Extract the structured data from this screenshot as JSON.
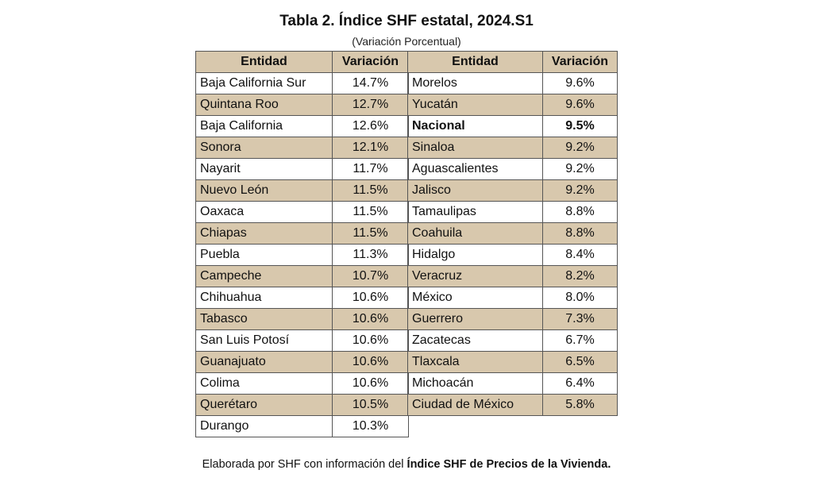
{
  "title": "Tabla 2. Índice SHF estatal, 2024.S1",
  "subtitle": "(Variación Porcentual)",
  "headers": {
    "entidad": "Entidad",
    "variacion": "Variación"
  },
  "left_rows": [
    {
      "entidad": "Baja California Sur",
      "variacion": "14.7%"
    },
    {
      "entidad": "Quintana Roo",
      "variacion": "12.7%"
    },
    {
      "entidad": "Baja California",
      "variacion": "12.6%"
    },
    {
      "entidad": "Sonora",
      "variacion": "12.1%"
    },
    {
      "entidad": "Nayarit",
      "variacion": "11.7%"
    },
    {
      "entidad": "Nuevo León",
      "variacion": "11.5%"
    },
    {
      "entidad": "Oaxaca",
      "variacion": "11.5%"
    },
    {
      "entidad": "Chiapas",
      "variacion": "11.5%"
    },
    {
      "entidad": "Puebla",
      "variacion": "11.3%"
    },
    {
      "entidad": "Campeche",
      "variacion": "10.7%"
    },
    {
      "entidad": "Chihuahua",
      "variacion": "10.6%"
    },
    {
      "entidad": "Tabasco",
      "variacion": "10.6%"
    },
    {
      "entidad": "San Luis Potosí",
      "variacion": "10.6%"
    },
    {
      "entidad": "Guanajuato",
      "variacion": "10.6%"
    },
    {
      "entidad": "Colima",
      "variacion": "10.6%"
    },
    {
      "entidad": "Querétaro",
      "variacion": "10.5%"
    },
    {
      "entidad": "Durango",
      "variacion": "10.3%"
    }
  ],
  "right_rows": [
    {
      "entidad": "Morelos",
      "variacion": "9.6%"
    },
    {
      "entidad": "Yucatán",
      "variacion": "9.6%"
    },
    {
      "entidad": "Nacional",
      "variacion": "9.5%"
    },
    {
      "entidad": "Sinaloa",
      "variacion": "9.2%"
    },
    {
      "entidad": "Aguascalientes",
      "variacion": "9.2%"
    },
    {
      "entidad": "Jalisco",
      "variacion": "9.2%"
    },
    {
      "entidad": "Tamaulipas",
      "variacion": "8.8%"
    },
    {
      "entidad": "Coahuila",
      "variacion": "8.8%"
    },
    {
      "entidad": "Hidalgo",
      "variacion": "8.4%"
    },
    {
      "entidad": "Veracruz",
      "variacion": "8.2%"
    },
    {
      "entidad": "México",
      "variacion": "8.0%"
    },
    {
      "entidad": "Guerrero",
      "variacion": "7.3%"
    },
    {
      "entidad": "Zacatecas",
      "variacion": "6.7%"
    },
    {
      "entidad": "Tlaxcala",
      "variacion": "6.5%"
    },
    {
      "entidad": "Michoacán",
      "variacion": "6.4%"
    },
    {
      "entidad": "Ciudad de México",
      "variacion": "5.8%"
    }
  ],
  "highlight_entity": "Nacional",
  "footer": {
    "prefix": "Elaborada por SHF con información del ",
    "bold": "Índice SHF de Precios de la Vivienda."
  },
  "colors": {
    "shade": "#d8c8ad",
    "border": "#555555"
  }
}
